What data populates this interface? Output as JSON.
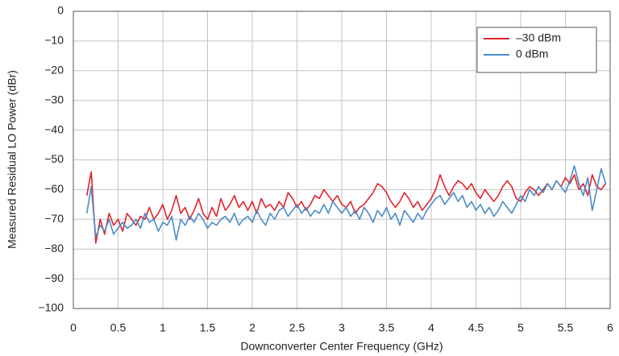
{
  "chart_data": {
    "type": "line",
    "xlabel": "Downconverter Center Frequency (GHz)",
    "ylabel": "Measured Residual LO Power (dBr)",
    "x": [
      0.15,
      0.2,
      0.25,
      0.3,
      0.35,
      0.4,
      0.45,
      0.5,
      0.55,
      0.6,
      0.65,
      0.7,
      0.75,
      0.8,
      0.85,
      0.9,
      0.95,
      1.0,
      1.05,
      1.1,
      1.15,
      1.2,
      1.25,
      1.3,
      1.35,
      1.4,
      1.45,
      1.5,
      1.55,
      1.6,
      1.65,
      1.7,
      1.75,
      1.8,
      1.85,
      1.9,
      1.95,
      2.0,
      2.05,
      2.1,
      2.15,
      2.2,
      2.25,
      2.3,
      2.35,
      2.4,
      2.45,
      2.5,
      2.55,
      2.6,
      2.65,
      2.7,
      2.75,
      2.8,
      2.85,
      2.9,
      2.95,
      3.0,
      3.05,
      3.1,
      3.15,
      3.2,
      3.25,
      3.3,
      3.35,
      3.4,
      3.45,
      3.5,
      3.55,
      3.6,
      3.65,
      3.7,
      3.75,
      3.8,
      3.85,
      3.9,
      3.95,
      4.0,
      4.05,
      4.1,
      4.15,
      4.2,
      4.25,
      4.3,
      4.35,
      4.4,
      4.45,
      4.5,
      4.55,
      4.6,
      4.65,
      4.7,
      4.75,
      4.8,
      4.85,
      4.9,
      4.95,
      5.0,
      5.05,
      5.1,
      5.15,
      5.2,
      5.25,
      5.3,
      5.35,
      5.4,
      5.45,
      5.5,
      5.55,
      5.6,
      5.65,
      5.7,
      5.75,
      5.8,
      5.85,
      5.9,
      5.95
    ],
    "series": [
      {
        "name": "–30 dBm",
        "color": "#e0242b",
        "values": [
          -62,
          -54,
          -78,
          -70,
          -75,
          -68,
          -72,
          -70,
          -74,
          -68,
          -70,
          -72,
          -69,
          -70,
          -66,
          -70,
          -68,
          -65,
          -70,
          -67,
          -62,
          -68,
          -66,
          -70,
          -67,
          -63,
          -68,
          -70,
          -66,
          -69,
          -63,
          -67,
          -65,
          -62,
          -66,
          -64,
          -67,
          -64,
          -68,
          -63,
          -66,
          -65,
          -67,
          -64,
          -66,
          -61,
          -63,
          -66,
          -64,
          -67,
          -65,
          -62,
          -63,
          -60,
          -62,
          -64,
          -62,
          -65,
          -66,
          -64,
          -68,
          -66,
          -65,
          -63,
          -61,
          -58,
          -59,
          -61,
          -64,
          -66,
          -64,
          -61,
          -63,
          -66,
          -64,
          -67,
          -65,
          -63,
          -60,
          -55,
          -59,
          -62,
          -59,
          -57,
          -58,
          -60,
          -58,
          -61,
          -63,
          -60,
          -62,
          -64,
          -62,
          -59,
          -57,
          -59,
          -63,
          -64,
          -61,
          -59,
          -60,
          -62,
          -60,
          -58,
          -60,
          -57,
          -59,
          -56,
          -58,
          -55,
          -60,
          -58,
          -62,
          -55,
          -59,
          -60,
          -58
        ]
      },
      {
        "name": "0 dBm",
        "color": "#4a8cc7",
        "values": [
          -68,
          -59,
          -76,
          -72,
          -74,
          -70,
          -75,
          -73,
          -71,
          -73,
          -72,
          -70,
          -73,
          -68,
          -71,
          -70,
          -74,
          -71,
          -72,
          -69,
          -77,
          -70,
          -72,
          -69,
          -71,
          -68,
          -70,
          -73,
          -71,
          -72,
          -70,
          -69,
          -71,
          -68,
          -72,
          -70,
          -69,
          -71,
          -67,
          -70,
          -72,
          -68,
          -70,
          -67,
          -66,
          -69,
          -67,
          -65,
          -68,
          -66,
          -69,
          -67,
          -68,
          -65,
          -68,
          -64,
          -66,
          -68,
          -66,
          -69,
          -67,
          -70,
          -66,
          -68,
          -71,
          -67,
          -69,
          -66,
          -70,
          -68,
          -72,
          -67,
          -69,
          -71,
          -68,
          -70,
          -67,
          -65,
          -63,
          -62,
          -65,
          -63,
          -61,
          -64,
          -62,
          -66,
          -64,
          -67,
          -65,
          -68,
          -66,
          -69,
          -67,
          -64,
          -66,
          -68,
          -65,
          -62,
          -64,
          -60,
          -62,
          -59,
          -61,
          -58,
          -60,
          -57,
          -59,
          -61,
          -57,
          -52,
          -58,
          -62,
          -56,
          -67,
          -60,
          -53,
          -58
        ]
      }
    ],
    "xlim": [
      0,
      6
    ],
    "xticks": [
      0,
      0.5,
      1,
      1.5,
      2,
      2.5,
      3,
      3.5,
      4,
      4.5,
      5,
      5.5,
      6
    ],
    "ylim": [
      -100,
      0
    ],
    "yticks": [
      {
        "value": -100,
        "label": "−100"
      },
      {
        "value": -90,
        "label": "−90"
      },
      {
        "value": -80,
        "label": "−80"
      },
      {
        "value": -70,
        "label": "−70"
      },
      {
        "value": -60,
        "label": "−60"
      },
      {
        "value": -50,
        "label": "−50"
      },
      {
        "value": -40,
        "label": "−40"
      },
      {
        "value": -30,
        "label": "−30"
      },
      {
        "value": -20,
        "label": "−20"
      },
      {
        "value": -10,
        "label": "−10"
      },
      0
    ],
    "grid": true,
    "legend": "upper right"
  }
}
